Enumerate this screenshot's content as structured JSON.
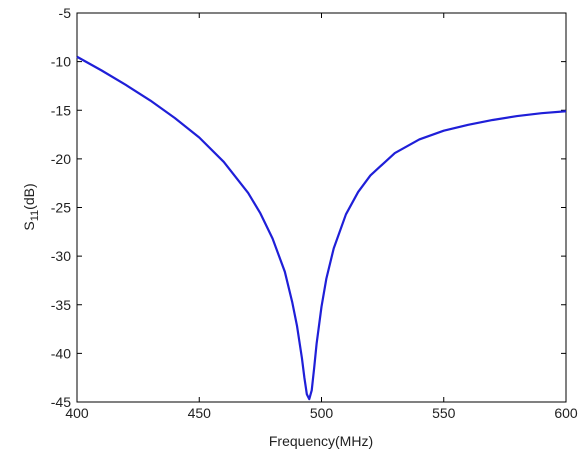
{
  "chart_data": {
    "type": "line",
    "title": "",
    "xlabel": "Frequency(MHz)",
    "ylabel": {
      "base": "S",
      "sub": "11",
      "unit": "(dB)"
    },
    "xlim": [
      400,
      600
    ],
    "ylim": [
      -45,
      -5
    ],
    "xticks": [
      400,
      450,
      500,
      550,
      600
    ],
    "yticks": [
      -5,
      -10,
      -15,
      -20,
      -25,
      -30,
      -35,
      -40,
      -45
    ],
    "grid": false,
    "line_color": "#1f1fd8",
    "series": [
      {
        "x": [
          400,
          410,
          420,
          430,
          440,
          450,
          460,
          470,
          475,
          480,
          485,
          488,
          490,
          492,
          493,
          494,
          495,
          496,
          497,
          498,
          500,
          502,
          505,
          510,
          515,
          520,
          530,
          540,
          550,
          560,
          570,
          580,
          590,
          600
        ],
        "values": [
          -9.5,
          -10.9,
          -12.4,
          -14.0,
          -15.8,
          -17.8,
          -20.3,
          -23.5,
          -25.6,
          -28.2,
          -31.6,
          -34.7,
          -37.2,
          -40.5,
          -42.5,
          -44.2,
          -44.7,
          -43.8,
          -41.5,
          -39.0,
          -35.2,
          -32.3,
          -29.2,
          -25.7,
          -23.4,
          -21.7,
          -19.4,
          -18.0,
          -17.1,
          -16.5,
          -16.0,
          -15.6,
          -15.3,
          -15.1
        ]
      }
    ]
  }
}
